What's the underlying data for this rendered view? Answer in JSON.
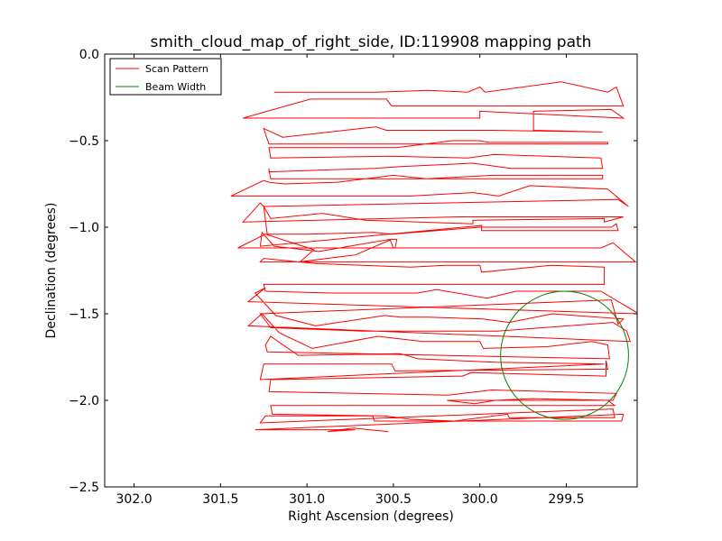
{
  "chart_data": {
    "type": "line",
    "title": "smith_cloud_map_of_right_side, ID:119908 mapping path",
    "xlabel": "Right Ascension (degrees)",
    "ylabel": "Declination (degrees)",
    "xlim": [
      302.17,
      299.09
    ],
    "ylim": [
      -2.5,
      0.0
    ],
    "x_ticks": [
      302.0,
      301.5,
      301.0,
      300.5,
      300.0,
      299.5
    ],
    "x_tick_labels": [
      "302.0",
      "301.5",
      "301.0",
      "300.5",
      "300.0",
      "299.5"
    ],
    "y_ticks": [
      0.0,
      -0.5,
      -1.0,
      -1.5,
      -2.0,
      -2.5
    ],
    "y_tick_labels": [
      "0.0",
      "−0.5",
      "−1.0",
      "−1.5",
      "−2.0",
      "−2.5"
    ],
    "grid": false,
    "legend_position": "upper left",
    "legend": [
      {
        "label": "Scan Pattern",
        "color": "#ff0000"
      },
      {
        "label": "Beam Width",
        "color": "#008000"
      }
    ],
    "series": [
      {
        "name": "Scan Pattern",
        "color": "#ff0000",
        "points": [
          [
            301.19,
            -0.22
          ],
          [
            300.6,
            -0.22
          ],
          [
            300.3,
            -0.21
          ],
          [
            300.07,
            -0.22
          ],
          [
            300.0,
            -0.19
          ],
          [
            299.97,
            -0.22
          ],
          [
            299.53,
            -0.16
          ],
          [
            299.26,
            -0.22
          ],
          [
            299.21,
            -0.19
          ],
          [
            299.17,
            -0.3
          ],
          [
            300.51,
            -0.3
          ],
          [
            300.54,
            -0.26
          ],
          [
            300.98,
            -0.26
          ],
          [
            301.37,
            -0.37
          ],
          [
            300.0,
            -0.37
          ],
          [
            300.0,
            -0.33
          ],
          [
            299.17,
            -0.37
          ],
          [
            299.24,
            -0.32
          ],
          [
            299.69,
            -0.33
          ],
          [
            299.69,
            -0.44
          ],
          [
            299.29,
            -0.45
          ],
          [
            299.29,
            -0.45
          ],
          [
            299.93,
            -0.44
          ],
          [
            300.54,
            -0.44
          ],
          [
            300.6,
            -0.42
          ],
          [
            301.14,
            -0.48
          ],
          [
            301.25,
            -0.43
          ],
          [
            301.22,
            -0.52
          ],
          [
            299.26,
            -0.52
          ],
          [
            299.26,
            -0.51
          ],
          [
            299.95,
            -0.51
          ],
          [
            300.0,
            -0.5
          ],
          [
            300.16,
            -0.5
          ],
          [
            300.48,
            -0.54
          ],
          [
            301.22,
            -0.54
          ],
          [
            301.21,
            -0.6
          ],
          [
            300.52,
            -0.59
          ],
          [
            300.07,
            -0.6
          ],
          [
            299.92,
            -0.58
          ],
          [
            299.3,
            -0.6
          ],
          [
            299.29,
            -0.66
          ],
          [
            299.82,
            -0.66
          ],
          [
            300.04,
            -0.63
          ],
          [
            300.46,
            -0.65
          ],
          [
            300.61,
            -0.66
          ],
          [
            301.22,
            -0.68
          ],
          [
            301.22,
            -0.66
          ],
          [
            301.22,
            -0.67
          ],
          [
            301.21,
            -0.72
          ],
          [
            299.29,
            -0.72
          ],
          [
            299.29,
            -0.7
          ],
          [
            299.87,
            -0.7
          ],
          [
            299.92,
            -0.7
          ],
          [
            300.31,
            -0.72
          ],
          [
            300.5,
            -0.7
          ],
          [
            300.82,
            -0.74
          ],
          [
            301.13,
            -0.75
          ],
          [
            301.22,
            -0.74
          ],
          [
            301.25,
            -0.73
          ],
          [
            301.44,
            -0.82
          ],
          [
            300.4,
            -0.82
          ],
          [
            300.04,
            -0.8
          ],
          [
            299.89,
            -0.82
          ],
          [
            299.71,
            -0.76
          ],
          [
            299.26,
            -0.78
          ],
          [
            299.14,
            -0.88
          ],
          [
            299.2,
            -0.84
          ],
          [
            301.25,
            -0.88
          ],
          [
            301.27,
            -0.86
          ],
          [
            301.37,
            -0.97
          ],
          [
            300.11,
            -0.94
          ],
          [
            299.17,
            -0.94
          ],
          [
            299.28,
            -0.97
          ],
          [
            299.28,
            -0.95
          ],
          [
            300.04,
            -0.96
          ],
          [
            300.04,
            -0.98
          ],
          [
            300.66,
            -0.96
          ],
          [
            300.91,
            -0.92
          ],
          [
            301.21,
            -0.95
          ],
          [
            301.25,
            -0.88
          ],
          [
            301.23,
            -1.04
          ],
          [
            301.0,
            -1.04
          ],
          [
            300.61,
            -1.03
          ],
          [
            300.51,
            -1.04
          ],
          [
            300.0,
            -1.0
          ],
          [
            299.24,
            -1.0
          ],
          [
            299.21,
            -0.98
          ],
          [
            299.2,
            -1.02
          ],
          [
            299.99,
            -1.02
          ],
          [
            299.99,
            -0.99
          ],
          [
            301.27,
            -1.11
          ],
          [
            301.26,
            -1.03
          ],
          [
            301.19,
            -1.11
          ],
          [
            300.93,
            -1.14
          ],
          [
            300.52,
            -1.07
          ],
          [
            300.5,
            -1.12
          ],
          [
            299.31,
            -1.12
          ],
          [
            301.4,
            -1.12
          ],
          [
            301.24,
            -1.04
          ],
          [
            300.96,
            -1.13
          ],
          [
            301.04,
            -1.2
          ],
          [
            300.72,
            -1.16
          ],
          [
            300.51,
            -1.07
          ],
          [
            300.48,
            -1.07
          ],
          [
            300.49,
            -1.12
          ],
          [
            299.3,
            -1.12
          ],
          [
            299.23,
            -1.09
          ],
          [
            299.1,
            -1.2
          ],
          [
            301.27,
            -1.2
          ],
          [
            301.25,
            -1.18
          ],
          [
            300.95,
            -1.21
          ],
          [
            300.4,
            -1.23
          ],
          [
            300.2,
            -1.22
          ],
          [
            300.0,
            -1.22
          ],
          [
            299.99,
            -1.26
          ],
          [
            299.59,
            -1.22
          ],
          [
            299.28,
            -1.23
          ],
          [
            299.28,
            -1.33
          ],
          [
            301.25,
            -1.33
          ],
          [
            301.24,
            -1.37
          ],
          [
            300.86,
            -1.38
          ],
          [
            300.36,
            -1.38
          ],
          [
            300.25,
            -1.36
          ],
          [
            299.96,
            -1.41
          ],
          [
            299.79,
            -1.37
          ],
          [
            299.3,
            -1.37
          ],
          [
            299.08,
            -1.5
          ],
          [
            301.34,
            -1.43
          ],
          [
            301.24,
            -1.35
          ],
          [
            301.3,
            -1.38
          ],
          [
            301.18,
            -1.51
          ],
          [
            300.95,
            -1.57
          ],
          [
            300.55,
            -1.51
          ],
          [
            300.46,
            -1.52
          ],
          [
            300.3,
            -1.52
          ],
          [
            299.98,
            -1.53
          ],
          [
            299.83,
            -1.55
          ],
          [
            299.58,
            -1.5
          ],
          [
            299.17,
            -1.53
          ],
          [
            299.2,
            -1.56
          ],
          [
            299.24,
            -1.42
          ],
          [
            301.27,
            -1.5
          ],
          [
            301.21,
            -1.58
          ],
          [
            300.68,
            -1.6
          ],
          [
            300.61,
            -1.6
          ],
          [
            299.9,
            -1.6
          ],
          [
            299.23,
            -1.55
          ],
          [
            299.15,
            -1.6
          ],
          [
            299.13,
            -1.66
          ],
          [
            301.34,
            -1.57
          ],
          [
            301.26,
            -1.5
          ],
          [
            301.16,
            -1.61
          ],
          [
            300.97,
            -1.7
          ],
          [
            300.59,
            -1.63
          ],
          [
            300.33,
            -1.66
          ],
          [
            300.0,
            -1.66
          ],
          [
            299.98,
            -1.7
          ],
          [
            299.61,
            -1.69
          ],
          [
            299.35,
            -1.66
          ],
          [
            299.26,
            -1.68
          ],
          [
            299.25,
            -1.76
          ],
          [
            301.23,
            -1.72
          ],
          [
            301.24,
            -1.68
          ],
          [
            301.21,
            -1.63
          ],
          [
            301.05,
            -1.74
          ],
          [
            300.46,
            -1.73
          ],
          [
            300.36,
            -1.76
          ],
          [
            299.91,
            -1.78
          ],
          [
            299.28,
            -1.79
          ],
          [
            301.27,
            -1.88
          ],
          [
            301.25,
            -1.79
          ],
          [
            300.51,
            -1.79
          ],
          [
            300.49,
            -1.83
          ],
          [
            299.26,
            -1.82
          ],
          [
            299.27,
            -1.77
          ],
          [
            299.27,
            -1.8
          ],
          [
            299.27,
            -1.86
          ],
          [
            300.05,
            -1.84
          ],
          [
            300.1,
            -1.86
          ],
          [
            301.21,
            -1.88
          ],
          [
            301.22,
            -1.95
          ],
          [
            300.18,
            -1.97
          ],
          [
            299.93,
            -1.94
          ],
          [
            299.21,
            -1.96
          ],
          [
            299.23,
            -2.0
          ],
          [
            300.19,
            -2.0
          ],
          [
            300.03,
            -2.02
          ],
          [
            299.91,
            -2.0
          ],
          [
            299.7,
            -1.99
          ],
          [
            299.26,
            -2.0
          ],
          [
            299.22,
            -2.03
          ],
          [
            301.21,
            -2.03
          ],
          [
            301.2,
            -2.08
          ],
          [
            300.55,
            -2.09
          ],
          [
            300.4,
            -2.11
          ],
          [
            300.15,
            -2.12
          ],
          [
            299.84,
            -2.08
          ],
          [
            299.83,
            -2.1
          ],
          [
            299.22,
            -2.1
          ],
          [
            299.23,
            -2.05
          ],
          [
            301.27,
            -2.13
          ],
          [
            301.24,
            -2.09
          ],
          [
            300.62,
            -2.09
          ],
          [
            300.61,
            -2.12
          ],
          [
            299.81,
            -2.12
          ],
          [
            299.18,
            -2.12
          ],
          [
            299.17,
            -2.08
          ],
          [
            301.3,
            -2.17
          ],
          [
            300.9,
            -2.17
          ],
          [
            300.78,
            -2.17
          ],
          [
            300.72,
            -2.17
          ],
          [
            300.88,
            -2.18
          ],
          [
            300.73,
            -2.16
          ],
          [
            300.64,
            -2.17
          ],
          [
            300.53,
            -2.18
          ]
        ]
      },
      {
        "name": "Beam Width",
        "color": "#008000",
        "shape": "ellipse",
        "center": [
          299.51,
          -1.74
        ],
        "radius_ra": 0.37,
        "radius_dec": 0.37
      }
    ]
  }
}
